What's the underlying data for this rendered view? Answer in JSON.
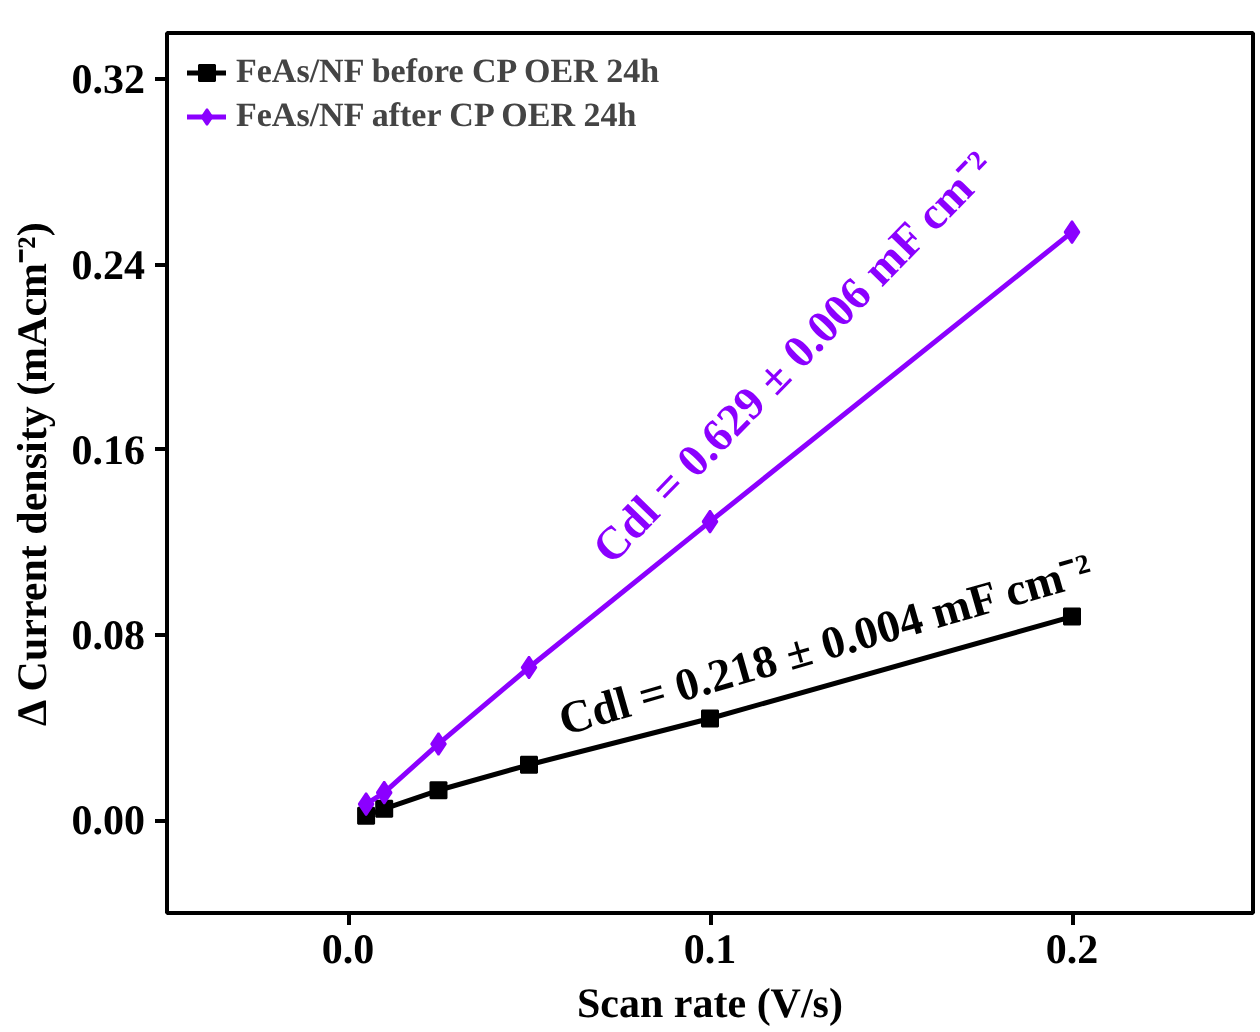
{
  "chart_data": {
    "type": "line",
    "xlabel": "Scan rate (V/s)",
    "ylabel": "Δ Current density (mAcm⁻²)",
    "x": [
      0.005,
      0.01,
      0.025,
      0.05,
      0.1,
      0.2
    ],
    "series": [
      {
        "name": "FeAs/NF before CP OER 24h",
        "color": "#000000",
        "marker": "square",
        "values": [
          0.002,
          0.005,
          0.013,
          0.024,
          0.044,
          0.088
        ]
      },
      {
        "name": "FeAs/NF after CP OER 24h",
        "color": "#8b00ff",
        "marker": "diamond",
        "values": [
          0.007,
          0.012,
          0.033,
          0.066,
          0.129,
          0.254
        ]
      }
    ],
    "xlim": [
      -0.05,
      0.25
    ],
    "xticks": [
      {
        "value": 0,
        "label": "0.0"
      },
      0.1,
      0.2
    ],
    "ylim": [
      -0.04,
      0.34
    ],
    "yticks": [
      {
        "value": 0,
        "label": "0.00"
      },
      0.08,
      0.16,
      0.24,
      0.32
    ],
    "annotations": [
      "Cdl =  0.629 ± 0.006 mF cm⁻²",
      "Cdl = 0.218  ± 0.004 mF cm⁻²"
    ],
    "legend": "top left",
    "grid": false
  }
}
